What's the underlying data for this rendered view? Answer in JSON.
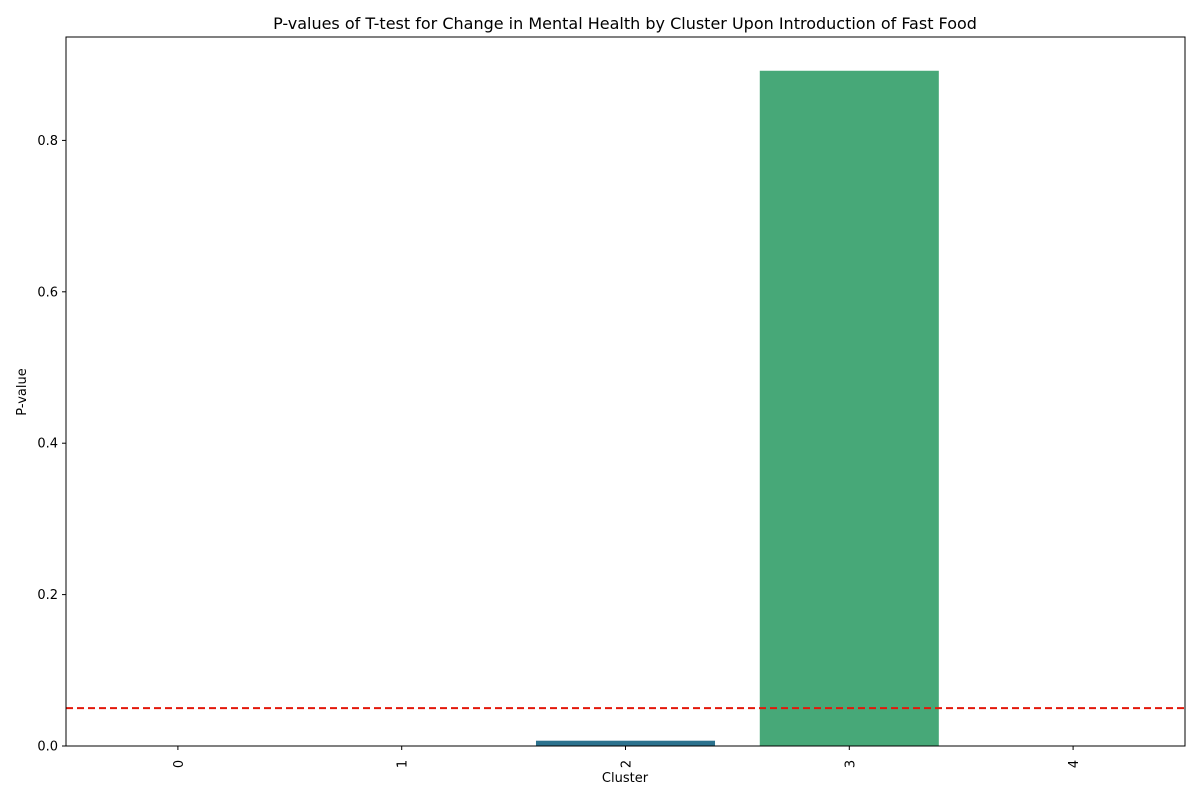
{
  "chart_data": {
    "type": "bar",
    "title": "P-values of T-test for Change in Mental Health by Cluster Upon Introduction of Fast Food",
    "xlabel": "Cluster",
    "ylabel": "P-value",
    "categories": [
      "0",
      "1",
      "2",
      "3",
      "4"
    ],
    "values": [
      0.0,
      0.0,
      0.007,
      0.892,
      0.0
    ],
    "bar_colors": [
      "#440154",
      "#3b528b",
      "#2c728e",
      "#47a878",
      "#fde725"
    ],
    "ylim": [
      0,
      0.9366
    ],
    "yticks": [
      0.0,
      0.2,
      0.4,
      0.6,
      0.8
    ],
    "ytick_labels": [
      "0.0",
      "0.2",
      "0.4",
      "0.6",
      "0.8"
    ],
    "xtick_rotation": "vertical",
    "threshold": {
      "value": 0.05,
      "color": "#e3170a",
      "style": "dashed"
    },
    "grid": false,
    "legend": "none"
  }
}
